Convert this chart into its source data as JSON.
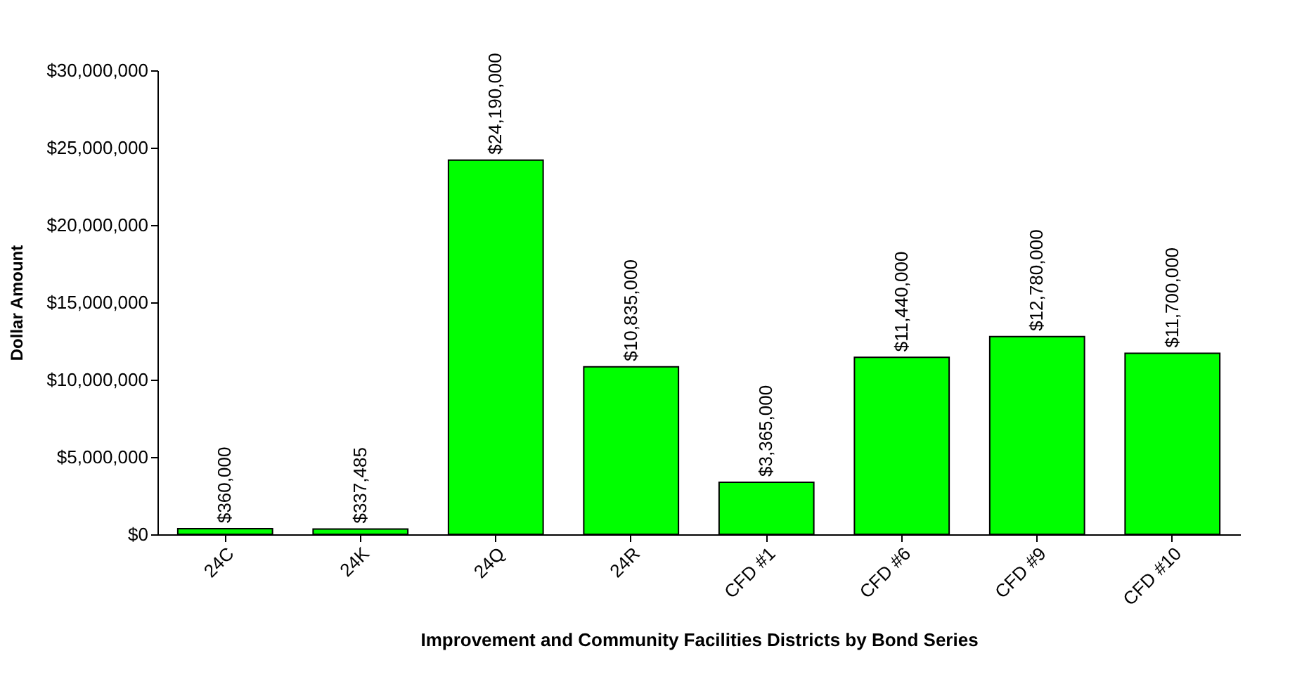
{
  "chart_data": {
    "type": "bar",
    "xlabel": "Improvement and Community Facilities Districts by Bond Series",
    "ylabel": "Dollar Amount",
    "categories": [
      "24C",
      "24K",
      "24Q",
      "24R",
      "CFD #1",
      "CFD #6",
      "CFD #9",
      "CFD #10"
    ],
    "values": [
      360000,
      337485,
      24190000,
      10835000,
      3365000,
      11440000,
      12780000,
      11700000
    ],
    "value_labels": [
      "$360,000",
      "$337,485",
      "$24,190,000",
      "$10,835,000",
      "$3,365,000",
      "$11,440,000",
      "$12,780,000",
      "$11,700,000"
    ],
    "color": "#00ff00",
    "ylim": [
      0,
      30000000
    ],
    "yticks": [
      {
        "value": 0,
        "label": "$0"
      },
      {
        "value": 5000000,
        "label": "$5,000,000"
      },
      {
        "value": 10000000,
        "label": "$10,000,000"
      },
      {
        "value": 15000000,
        "label": "$15,000,000"
      },
      {
        "value": 20000000,
        "label": "$20,000,000"
      },
      {
        "value": 25000000,
        "label": "$25,000,000"
      },
      {
        "value": 30000000,
        "label": "$30,000,000"
      }
    ],
    "grid": false
  }
}
